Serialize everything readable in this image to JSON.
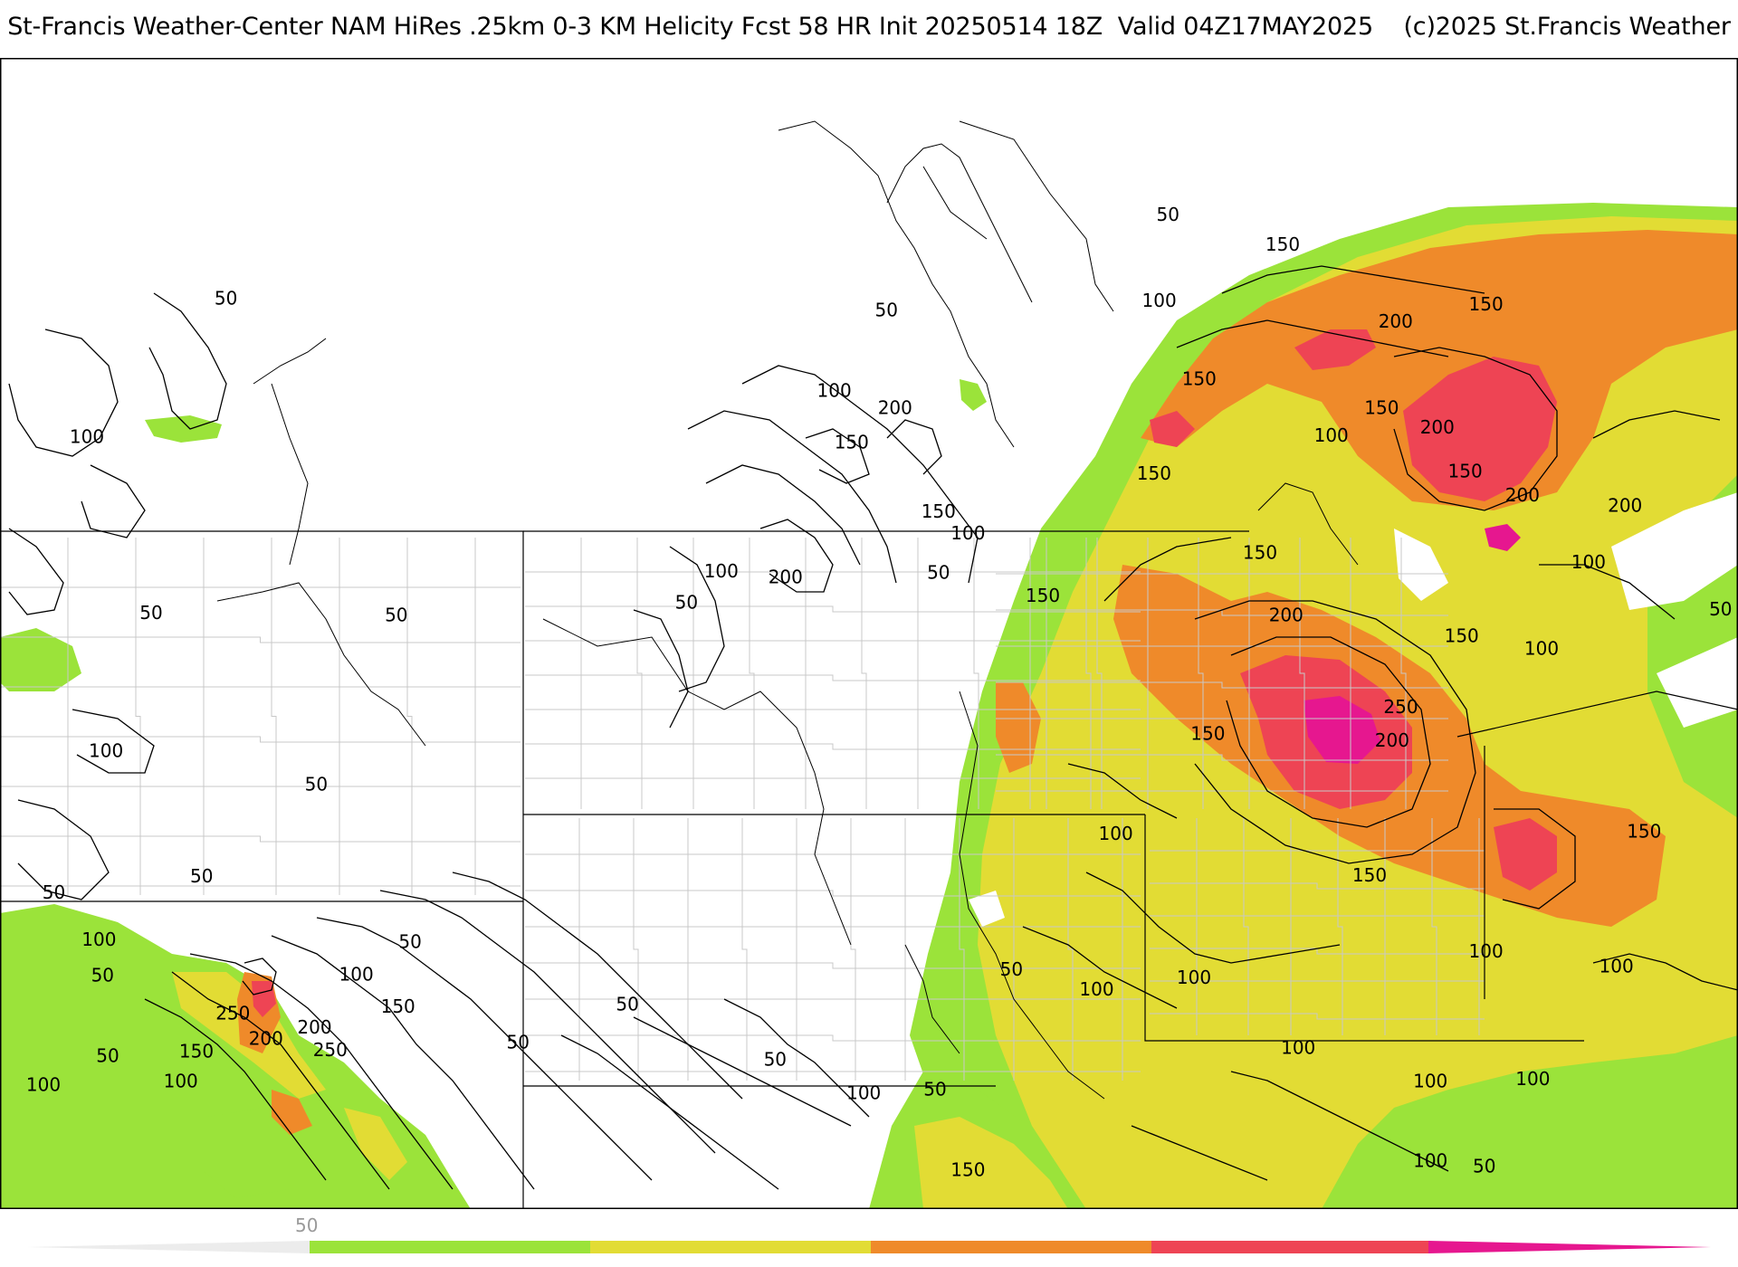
{
  "title": "St-Francis Weather-Center NAM HiRes .25km 0-3 KM Helicity Fcst 58 HR Init 20250514 18Z  Valid 04Z17MAY2025    (c)2025 St.Francis Weather",
  "colors": {
    "band_50": "#9be33a",
    "band_100": "#e2dc34",
    "band_150": "#ef8a2a",
    "band_200": "#ee4454",
    "band_250": "#e6178f",
    "contour": "#000000",
    "border": "#000000",
    "county": "#c8c8c8"
  },
  "scale": {
    "label": "50"
  },
  "contour_labels": [
    {
      "text": "50",
      "lon": 0.13,
      "lat": 0.21
    },
    {
      "text": "100",
      "lon": 0.05,
      "lat": 0.33
    },
    {
      "text": "50",
      "lon": 0.51,
      "lat": 0.22
    },
    {
      "text": "100",
      "lon": 0.48,
      "lat": 0.29
    },
    {
      "text": "200",
      "lon": 0.515,
      "lat": 0.305
    },
    {
      "text": "150",
      "lon": 0.49,
      "lat": 0.335
    },
    {
      "text": "150",
      "lon": 0.54,
      "lat": 0.395
    },
    {
      "text": "100",
      "lon": 0.557,
      "lat": 0.414
    },
    {
      "text": "100",
      "lon": 0.415,
      "lat": 0.447
    },
    {
      "text": "200",
      "lon": 0.452,
      "lat": 0.452
    },
    {
      "text": "50",
      "lon": 0.54,
      "lat": 0.448
    },
    {
      "text": "50",
      "lon": 0.395,
      "lat": 0.474
    },
    {
      "text": "50",
      "lon": 0.672,
      "lat": 0.137
    },
    {
      "text": "150",
      "lon": 0.738,
      "lat": 0.163
    },
    {
      "text": "100",
      "lon": 0.667,
      "lat": 0.212
    },
    {
      "text": "200",
      "lon": 0.803,
      "lat": 0.23
    },
    {
      "text": "150",
      "lon": 0.855,
      "lat": 0.215
    },
    {
      "text": "150",
      "lon": 0.69,
      "lat": 0.28
    },
    {
      "text": "150",
      "lon": 0.795,
      "lat": 0.305
    },
    {
      "text": "100",
      "lon": 0.766,
      "lat": 0.329
    },
    {
      "text": "200",
      "lon": 0.827,
      "lat": 0.322
    },
    {
      "text": "150",
      "lon": 0.664,
      "lat": 0.362
    },
    {
      "text": "150",
      "lon": 0.843,
      "lat": 0.36
    },
    {
      "text": "200",
      "lon": 0.876,
      "lat": 0.381
    },
    {
      "text": "200",
      "lon": 0.935,
      "lat": 0.39
    },
    {
      "text": "150",
      "lon": 0.725,
      "lat": 0.431
    },
    {
      "text": "100",
      "lon": 0.914,
      "lat": 0.439
    },
    {
      "text": "150",
      "lon": 0.6,
      "lat": 0.468
    },
    {
      "text": "200",
      "lon": 0.74,
      "lat": 0.485
    },
    {
      "text": "50",
      "lon": 0.99,
      "lat": 0.48
    },
    {
      "text": "150",
      "lon": 0.841,
      "lat": 0.503
    },
    {
      "text": "100",
      "lon": 0.887,
      "lat": 0.514
    },
    {
      "text": "250",
      "lon": 0.806,
      "lat": 0.565
    },
    {
      "text": "150",
      "lon": 0.695,
      "lat": 0.588
    },
    {
      "text": "200",
      "lon": 0.801,
      "lat": 0.594
    },
    {
      "text": "100",
      "lon": 0.642,
      "lat": 0.675
    },
    {
      "text": "150",
      "lon": 0.946,
      "lat": 0.673
    },
    {
      "text": "150",
      "lon": 0.788,
      "lat": 0.711
    },
    {
      "text": "100",
      "lon": 0.855,
      "lat": 0.777
    },
    {
      "text": "100",
      "lon": 0.93,
      "lat": 0.79
    },
    {
      "text": "50",
      "lon": 0.582,
      "lat": 0.793
    },
    {
      "text": "100",
      "lon": 0.687,
      "lat": 0.8
    },
    {
      "text": "100",
      "lon": 0.631,
      "lat": 0.81
    },
    {
      "text": "100",
      "lon": 0.747,
      "lat": 0.861
    },
    {
      "text": "100",
      "lon": 0.823,
      "lat": 0.89
    },
    {
      "text": "100",
      "lon": 0.882,
      "lat": 0.888
    },
    {
      "text": "100",
      "lon": 0.823,
      "lat": 0.959
    },
    {
      "text": "50",
      "lon": 0.854,
      "lat": 0.964
    },
    {
      "text": "150",
      "lon": 0.557,
      "lat": 0.967
    },
    {
      "text": "100",
      "lon": 0.497,
      "lat": 0.9
    },
    {
      "text": "50",
      "lon": 0.538,
      "lat": 0.897
    },
    {
      "text": "50",
      "lon": 0.446,
      "lat": 0.871
    },
    {
      "text": "50",
      "lon": 0.361,
      "lat": 0.823
    },
    {
      "text": "50",
      "lon": 0.298,
      "lat": 0.856
    },
    {
      "text": "50",
      "lon": 0.087,
      "lat": 0.483
    },
    {
      "text": "50",
      "lon": 0.228,
      "lat": 0.485
    },
    {
      "text": "100",
      "lon": 0.061,
      "lat": 0.603
    },
    {
      "text": "50",
      "lon": 0.182,
      "lat": 0.632
    },
    {
      "text": "50",
      "lon": 0.116,
      "lat": 0.712
    },
    {
      "text": "50",
      "lon": 0.031,
      "lat": 0.726
    },
    {
      "text": "100",
      "lon": 0.057,
      "lat": 0.767
    },
    {
      "text": "50",
      "lon": 0.236,
      "lat": 0.769
    },
    {
      "text": "50",
      "lon": 0.059,
      "lat": 0.798
    },
    {
      "text": "100",
      "lon": 0.205,
      "lat": 0.797
    },
    {
      "text": "150",
      "lon": 0.229,
      "lat": 0.825
    },
    {
      "text": "250",
      "lon": 0.134,
      "lat": 0.831
    },
    {
      "text": "200",
      "lon": 0.181,
      "lat": 0.843
    },
    {
      "text": "200",
      "lon": 0.153,
      "lat": 0.853
    },
    {
      "text": "250",
      "lon": 0.19,
      "lat": 0.863
    },
    {
      "text": "150",
      "lon": 0.113,
      "lat": 0.864
    },
    {
      "text": "50",
      "lon": 0.062,
      "lat": 0.868
    },
    {
      "text": "100",
      "lon": 0.104,
      "lat": 0.89
    },
    {
      "text": "100",
      "lon": 0.025,
      "lat": 0.893
    }
  ]
}
